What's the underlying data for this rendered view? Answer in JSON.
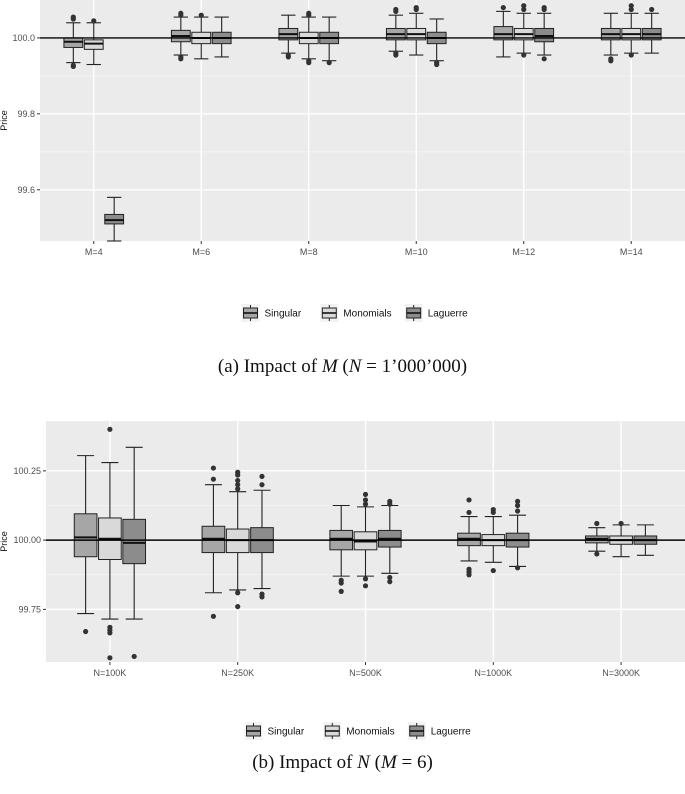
{
  "chart_data": [
    {
      "type": "box",
      "ylabel": "Price",
      "xlabel": "",
      "ylim": [
        99.465,
        100.1
      ],
      "yticks": [
        99.6,
        99.8,
        100.0
      ],
      "ytick_labels": [
        "99.6",
        "99.8",
        "100.0"
      ],
      "reference_line": 100.0,
      "categories": [
        "M=4",
        "M=6",
        "M=8",
        "M=10",
        "M=12",
        "M=14"
      ],
      "series": [
        {
          "name": "Singular",
          "fill": "#a6a6a6",
          "boxes": [
            {
              "whisker_low": 99.935,
              "q1": 99.975,
              "median": 99.99,
              "q3": 100.0,
              "whisker_high": 100.04,
              "outliers": [
                99.925,
                99.928,
                100.05,
                100.055
              ]
            },
            {
              "whisker_low": 99.955,
              "q1": 99.99,
              "median": 100.005,
              "q3": 100.02,
              "whisker_high": 100.055,
              "outliers": [
                99.945,
                99.95,
                100.06,
                100.065
              ]
            },
            {
              "whisker_low": 99.96,
              "q1": 99.995,
              "median": 100.01,
              "q3": 100.025,
              "whisker_high": 100.06,
              "outliers": [
                99.95,
                99.955
              ]
            },
            {
              "whisker_low": 99.965,
              "q1": 99.995,
              "median": 100.01,
              "q3": 100.025,
              "whisker_high": 100.06,
              "outliers": [
                99.955,
                99.96,
                100.07,
                100.075
              ]
            },
            {
              "whisker_low": 99.95,
              "q1": 99.995,
              "median": 100.01,
              "q3": 100.03,
              "whisker_high": 100.07,
              "outliers": [
                100.08
              ]
            },
            {
              "whisker_low": 99.955,
              "q1": 99.995,
              "median": 100.01,
              "q3": 100.025,
              "whisker_high": 100.065,
              "outliers": [
                99.94,
                99.945
              ]
            }
          ]
        },
        {
          "name": "Monomials",
          "fill": "#d9d9d9",
          "boxes": [
            {
              "whisker_low": 99.93,
              "q1": 99.97,
              "median": 99.985,
              "q3": 99.995,
              "whisker_high": 100.04,
              "outliers": [
                100.045
              ]
            },
            {
              "whisker_low": 99.945,
              "q1": 99.985,
              "median": 100.0,
              "q3": 100.015,
              "whisker_high": 100.055,
              "outliers": [
                100.06
              ]
            },
            {
              "whisker_low": 99.945,
              "q1": 99.985,
              "median": 100.0,
              "q3": 100.015,
              "whisker_high": 100.055,
              "outliers": [
                99.935,
                99.94,
                100.06,
                100.065
              ]
            },
            {
              "whisker_low": 99.955,
              "q1": 99.995,
              "median": 100.01,
              "q3": 100.025,
              "whisker_high": 100.065,
              "outliers": [
                100.075,
                100.08
              ]
            },
            {
              "whisker_low": 99.96,
              "q1": 99.995,
              "median": 100.01,
              "q3": 100.025,
              "whisker_high": 100.065,
              "outliers": [
                99.955,
                100.075,
                100.085
              ]
            },
            {
              "whisker_low": 99.96,
              "q1": 99.995,
              "median": 100.01,
              "q3": 100.025,
              "whisker_high": 100.065,
              "outliers": [
                99.955,
                100.075,
                100.085
              ]
            }
          ]
        },
        {
          "name": "Laguerre",
          "fill": "#8c8c8c",
          "boxes": [
            {
              "whisker_low": 99.465,
              "q1": 99.51,
              "median": 99.52,
              "q3": 99.535,
              "whisker_high": 99.58,
              "outliers": []
            },
            {
              "whisker_low": 99.95,
              "q1": 99.985,
              "median": 100.0,
              "q3": 100.015,
              "whisker_high": 100.055,
              "outliers": []
            },
            {
              "whisker_low": 99.94,
              "q1": 99.985,
              "median": 100.0,
              "q3": 100.015,
              "whisker_high": 100.055,
              "outliers": [
                99.935
              ]
            },
            {
              "whisker_low": 99.94,
              "q1": 99.985,
              "median": 100.0,
              "q3": 100.015,
              "whisker_high": 100.05,
              "outliers": [
                99.93,
                99.935
              ]
            },
            {
              "whisker_low": 99.955,
              "q1": 99.99,
              "median": 100.005,
              "q3": 100.025,
              "whisker_high": 100.065,
              "outliers": [
                99.945,
                100.075,
                100.08
              ]
            },
            {
              "whisker_low": 99.96,
              "q1": 99.995,
              "median": 100.01,
              "q3": 100.025,
              "whisker_high": 100.065,
              "outliers": [
                100.075
              ]
            }
          ]
        }
      ],
      "legend": [
        "Singular",
        "Monomials",
        "Laguerre"
      ],
      "legend_position": "bottom",
      "grid": true,
      "panel_color": "#ebebeb"
    },
    {
      "type": "box",
      "ylabel": "Price",
      "xlabel": "",
      "ylim": [
        99.56,
        100.43
      ],
      "yticks": [
        99.75,
        100.0,
        100.25
      ],
      "ytick_labels": [
        "99.75",
        "100.00",
        "100.25"
      ],
      "reference_line": 100.0,
      "categories": [
        "N=100K",
        "N=250K",
        "N=500K",
        "N=1000K",
        "N=3000K"
      ],
      "series": [
        {
          "name": "Singular",
          "fill": "#a6a6a6",
          "boxes": [
            {
              "whisker_low": 99.735,
              "q1": 99.94,
              "median": 100.01,
              "q3": 100.095,
              "whisker_high": 100.305,
              "outliers": [
                99.67
              ]
            },
            {
              "whisker_low": 99.81,
              "q1": 99.955,
              "median": 100.005,
              "q3": 100.05,
              "whisker_high": 100.2,
              "outliers": [
                99.725,
                100.22,
                100.26
              ]
            },
            {
              "whisker_low": 99.87,
              "q1": 99.965,
              "median": 100.005,
              "q3": 100.035,
              "whisker_high": 100.125,
              "outliers": [
                99.815,
                99.845,
                99.855
              ]
            },
            {
              "whisker_low": 99.925,
              "q1": 99.98,
              "median": 100.005,
              "q3": 100.025,
              "whisker_high": 100.085,
              "outliers": [
                99.875,
                99.885,
                99.895,
                100.1,
                100.145
              ]
            },
            {
              "whisker_low": 99.96,
              "q1": 99.99,
              "median": 100.005,
              "q3": 100.015,
              "whisker_high": 100.045,
              "outliers": [
                99.95,
                100.06
              ]
            }
          ]
        },
        {
          "name": "Monomials",
          "fill": "#d9d9d9",
          "boxes": [
            {
              "whisker_low": 99.715,
              "q1": 99.93,
              "median": 100.005,
              "q3": 100.08,
              "whisker_high": 100.28,
              "outliers": [
                99.575,
                99.665,
                99.675,
                99.685,
                100.4
              ]
            },
            {
              "whisker_low": 99.82,
              "q1": 99.955,
              "median": 100.0,
              "q3": 100.04,
              "whisker_high": 100.175,
              "outliers": [
                99.76,
                99.81,
                100.185,
                100.2,
                100.215,
                100.235,
                100.245
              ]
            },
            {
              "whisker_low": 99.87,
              "q1": 99.965,
              "median": 99.995,
              "q3": 100.03,
              "whisker_high": 100.12,
              "outliers": [
                99.835,
                99.86,
                100.13,
                100.145,
                100.165
              ]
            },
            {
              "whisker_low": 99.92,
              "q1": 99.98,
              "median": 100.0,
              "q3": 100.02,
              "whisker_high": 100.085,
              "outliers": [
                99.89,
                100.1,
                100.11
              ]
            },
            {
              "whisker_low": 99.94,
              "q1": 99.985,
              "median": 100.0,
              "q3": 100.015,
              "whisker_high": 100.055,
              "outliers": [
                100.06
              ]
            }
          ]
        },
        {
          "name": "Laguerre",
          "fill": "#8c8c8c",
          "boxes": [
            {
              "whisker_low": 99.715,
              "q1": 99.915,
              "median": 99.99,
              "q3": 100.075,
              "whisker_high": 100.335,
              "outliers": [
                99.58
              ]
            },
            {
              "whisker_low": 99.825,
              "q1": 99.955,
              "median": 100.0,
              "q3": 100.045,
              "whisker_high": 100.18,
              "outliers": [
                99.795,
                99.805,
                100.2,
                100.23
              ]
            },
            {
              "whisker_low": 99.88,
              "q1": 99.975,
              "median": 100.005,
              "q3": 100.035,
              "whisker_high": 100.125,
              "outliers": [
                99.85,
                99.865,
                100.13,
                100.14
              ]
            },
            {
              "whisker_low": 99.905,
              "q1": 99.975,
              "median": 100.0,
              "q3": 100.025,
              "whisker_high": 100.09,
              "outliers": [
                99.9,
                100.105,
                100.125,
                100.14
              ]
            },
            {
              "whisker_low": 99.945,
              "q1": 99.985,
              "median": 100.0,
              "q3": 100.015,
              "whisker_high": 100.055,
              "outliers": []
            }
          ]
        }
      ],
      "legend": [
        "Singular",
        "Monomials",
        "Laguerre"
      ],
      "legend_position": "bottom",
      "grid": true,
      "panel_color": "#ebebeb"
    }
  ],
  "captions": {
    "a": {
      "prefix": "(a)  Impact of ",
      "var": "M",
      "rest": " (",
      "var2": "N",
      "tail": " = 1’000’000)"
    },
    "b": {
      "prefix": "(b)  Impact of ",
      "var": "N",
      "rest": " (",
      "var2": "M",
      "tail": " = 6)"
    }
  }
}
